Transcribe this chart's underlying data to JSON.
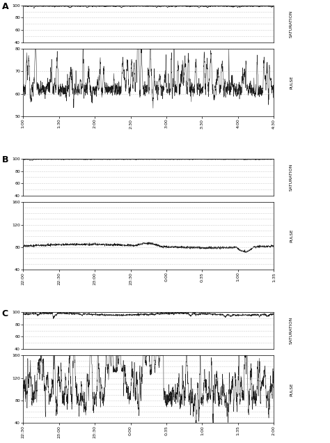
{
  "fig_width": 4.74,
  "fig_height": 6.36,
  "bg_color": "#ffffff",
  "line_color": "#1a1a1a",
  "grid_color": "#999999",
  "panels": [
    {
      "label": "A",
      "sat_ylim": [
        40,
        100
      ],
      "sat_yticks": [
        40,
        60,
        80,
        100
      ],
      "sat_ylabel": "SATURATION",
      "sat_baseline": 98.5,
      "sat_noise": 0.4,
      "sat_dips": false,
      "pulse_ylim": [
        50,
        80
      ],
      "pulse_yticks": [
        50,
        60,
        70,
        80
      ],
      "pulse_ylabel": "PULSE",
      "pulse_baseline": 62,
      "pulse_noise": 2.0,
      "pulse_spikes": true,
      "xtick_labels": [
        "1:00",
        "1:30",
        "2:00",
        "2:30",
        "3:00",
        "3:30",
        "4:00",
        "4:30"
      ],
      "n_points": 2000
    },
    {
      "label": "B",
      "sat_ylim": [
        40,
        100
      ],
      "sat_yticks": [
        40,
        60,
        80,
        100
      ],
      "sat_ylabel": "SATURATION",
      "sat_baseline": 98.5,
      "sat_noise": 0.3,
      "sat_dips": false,
      "pulse_ylim": [
        40,
        160
      ],
      "pulse_yticks": [
        40,
        80,
        120,
        160
      ],
      "pulse_ylabel": "PULSE",
      "pulse_baseline": 82,
      "pulse_noise": 1.5,
      "pulse_spikes": false,
      "xtick_labels": [
        "22:00",
        "22:30",
        "23:00",
        "23:30",
        "0:00",
        "0:35",
        "1:00",
        "1:35"
      ],
      "n_points": 2000
    },
    {
      "label": "C",
      "sat_ylim": [
        40,
        100
      ],
      "sat_yticks": [
        40,
        60,
        80,
        100
      ],
      "sat_ylabel": "SATURATION",
      "sat_baseline": 96,
      "sat_noise": 1.2,
      "sat_dips": false,
      "pulse_ylim": [
        40,
        160
      ],
      "pulse_yticks": [
        40,
        80,
        120,
        160
      ],
      "pulse_ylabel": "PULSE",
      "pulse_baseline": 85,
      "pulse_noise": 12.0,
      "pulse_spikes": true,
      "xtick_labels": [
        "22:30",
        "23:00",
        "23:30",
        "0:00",
        "0:35",
        "1:00",
        "1:35",
        "2:00"
      ],
      "n_points": 2000
    }
  ]
}
